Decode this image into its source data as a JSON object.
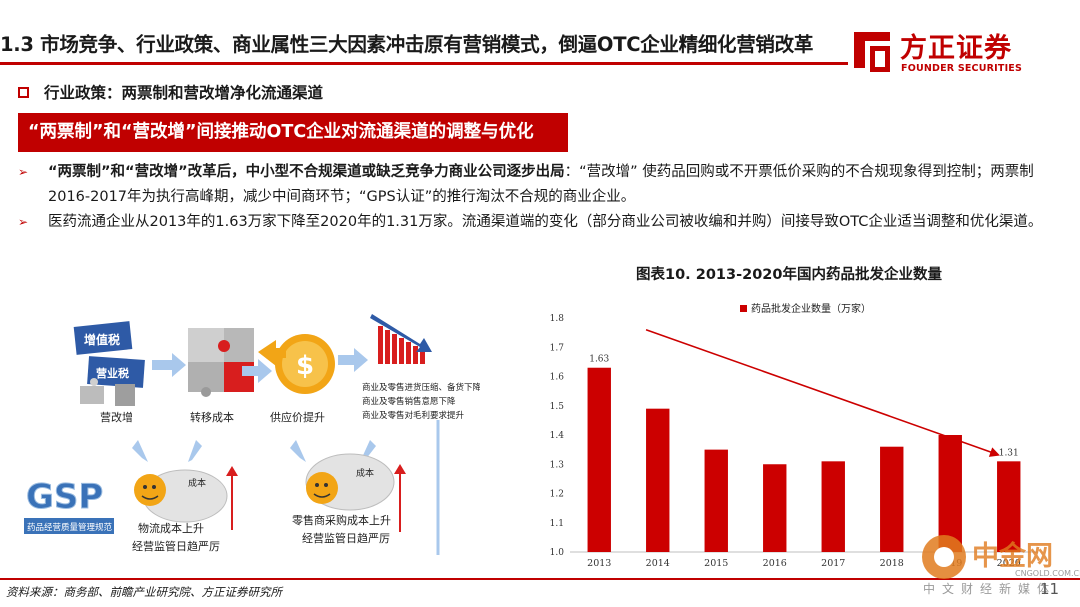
{
  "header": {
    "title": "1.3 市场竞争、行业政策、商业属性三大因素冲击原有营销模式，倒逼OTC企业精细化营销改革",
    "logo_cn": "方正证券",
    "logo_en": "FOUNDER SECURITIES"
  },
  "section": {
    "heading": "行业政策：两票制和营改增净化流通渠道"
  },
  "banner": {
    "text": "“两票制”和“营改增”间接推动OTC企业对流通渠道的调整与优化"
  },
  "bullets": [
    {
      "marker": "➢",
      "bold": "“两票制”和“营改增”改革后，中小型不合规渠道或缺乏竞争力商业公司逐步出局",
      "text": "：“营改增” 使药品回购或不开票低价采购的不合规现象得到控制；两票制2016-2017年为执行高峰期，减少中间商环节；“GPS认证”的推行淘汰不合规的商业企业。"
    },
    {
      "marker": "➢",
      "bold": "",
      "text": "医药流通企业从2013年的1.63万家下降至2020年的1.31万家。流通渠道端的变化（部分商业公司被收编和并购）间接导致OTC企业适当调整和优化渠道。"
    }
  ],
  "illustration": {
    "label_tax1": "增值税",
    "label_tax2": "营业税",
    "label_yinggaizeng": "营改增",
    "label_transfer_cost": "转移成本",
    "label_supply_price": "供应价提升",
    "label_bag_cost": "成本",
    "label_logistics_1": "物流成本上升",
    "label_logistics_2": "经营监管日趋严厉",
    "label_retail_1": "零售商采购成本上升",
    "label_retail_2": "经营监管日趋严厉",
    "note_1": "商业及零售进货压缩、备货下降",
    "note_2": "商业及零售销售意愿下降",
    "note_3": "商业及零售对毛利要求提升",
    "gsp_logo": "GSP",
    "gsp_caption": "药品经营质量管理规范",
    "colors": {
      "tax_blue": "#2e5aa6",
      "puzzle_red": "#d81e1e",
      "coin_gold": "#f2a516",
      "arrow_blue": "#a9c8ec",
      "arrow_red": "#d81e1e"
    }
  },
  "chart": {
    "caption": "图表10. 2013-2020年国内药品批发企业数量"
  },
  "chart_data": {
    "type": "bar",
    "title": "",
    "legend": [
      "药品批发企业数量（万家）"
    ],
    "legend_position": "top",
    "categories": [
      "2013",
      "2014",
      "2015",
      "2016",
      "2017",
      "2018",
      "2019",
      "2020"
    ],
    "series": [
      {
        "name": "药品批发企业数量（万家）",
        "values": [
          1.63,
          1.49,
          1.35,
          1.3,
          1.31,
          1.36,
          1.4,
          1.31
        ]
      }
    ],
    "data_labels": {
      "2013": "1.63",
      "2020": "1.31"
    },
    "ylim": [
      1.0,
      1.8
    ],
    "yticks": [
      "1.0",
      "1.1",
      "1.2",
      "1.3",
      "1.4",
      "1.5",
      "1.6",
      "1.7",
      "1.8"
    ],
    "grid": false,
    "trend_arrow": "downward",
    "colors": {
      "bar": "#cc0000",
      "arrow": "#cc0000"
    }
  },
  "footer": {
    "source": "资料来源：商务部、前瞻产业研究院、方正证券研究所",
    "page": "11"
  },
  "watermark": {
    "cn": "中金网",
    "url": "CNGOLD.COM.CN",
    "tagline": "中文财经新媒体"
  }
}
